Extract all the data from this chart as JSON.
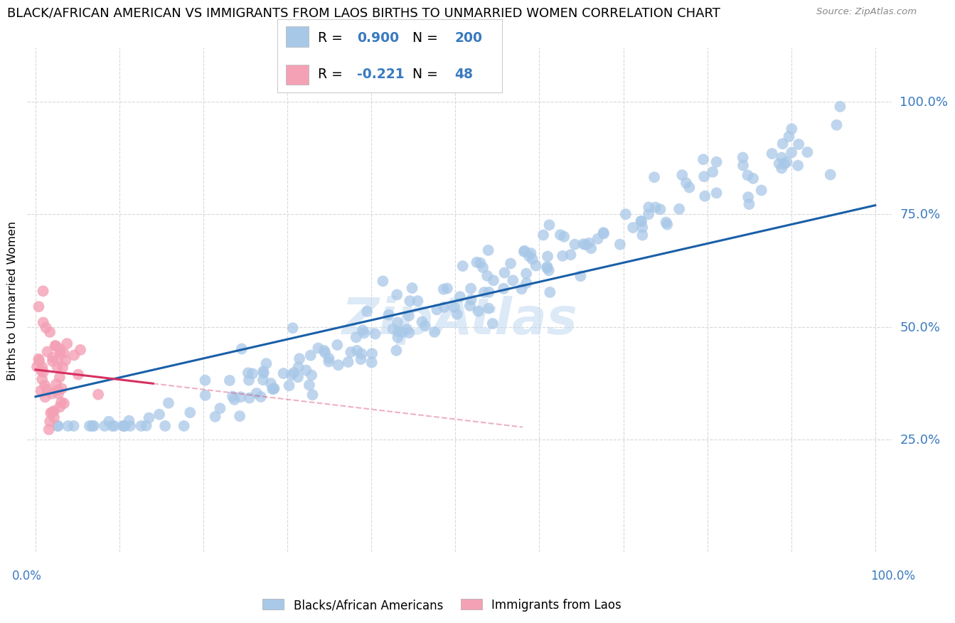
{
  "title": "BLACK/AFRICAN AMERICAN VS IMMIGRANTS FROM LAOS BIRTHS TO UNMARRIED WOMEN CORRELATION CHART",
  "source": "Source: ZipAtlas.com",
  "ylabel": "Births to Unmarried Women",
  "watermark": "ZipAtlas",
  "blue_color": "#a8c8e8",
  "blue_line_color": "#1a5fa8",
  "pink_color": "#f4a0b5",
  "pink_line_color": "#d63060",
  "blue_R": 0.9,
  "blue_N": 200,
  "pink_R": -0.221,
  "pink_N": 48,
  "blue_intercept": 0.345,
  "blue_slope": 0.425,
  "pink_intercept": 0.405,
  "pink_slope": -0.22,
  "ytick_labels": [
    "25.0%",
    "50.0%",
    "75.0%",
    "100.0%"
  ],
  "ytick_values": [
    0.25,
    0.5,
    0.75,
    1.0
  ],
  "right_axis_color": "#3a7abf",
  "grid_color": "#d8d8d8",
  "background_color": "#ffffff",
  "title_fontsize": 13,
  "watermark_fontsize": 52,
  "watermark_color": "#c0d8f0",
  "watermark_alpha": 0.55,
  "ymin": 0.0,
  "ymax": 1.12,
  "xmin": -0.01,
  "xmax": 1.02
}
